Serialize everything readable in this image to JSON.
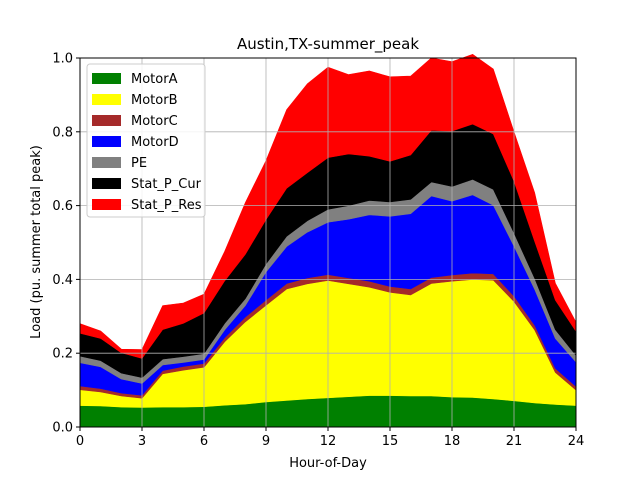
{
  "chart_data": {
    "type": "area",
    "title": "Austin,TX-summer_peak",
    "xlabel": "Hour-of-Day",
    "ylabel": "Load (pu. summer total peak)",
    "xlim": [
      0,
      24
    ],
    "ylim": [
      0,
      1.0
    ],
    "xticks": [
      0,
      3,
      6,
      9,
      12,
      15,
      18,
      21,
      24
    ],
    "xtick_labels": [
      "0",
      "3",
      "6",
      "9",
      "12",
      "15",
      "18",
      "21",
      "24"
    ],
    "yticks": [
      0,
      0.2,
      0.4,
      0.6,
      0.8,
      1.0
    ],
    "ytick_labels": [
      "0.0",
      "0.2",
      "0.4",
      "0.6",
      "0.8",
      "1.0"
    ],
    "grid": true,
    "stacked": true,
    "legend_position": "upper-left",
    "x": [
      0,
      1,
      2,
      3,
      4,
      5,
      6,
      7,
      8,
      9,
      10,
      11,
      12,
      13,
      14,
      15,
      16,
      17,
      18,
      19,
      20,
      21,
      22,
      23,
      24
    ],
    "series": [
      {
        "name": "MotorA",
        "color": "#008000",
        "values": [
          0.058,
          0.057,
          0.054,
          0.053,
          0.054,
          0.054,
          0.055,
          0.059,
          0.062,
          0.068,
          0.072,
          0.076,
          0.079,
          0.082,
          0.085,
          0.085,
          0.084,
          0.084,
          0.081,
          0.08,
          0.076,
          0.071,
          0.065,
          0.061,
          0.058
        ]
      },
      {
        "name": "MotorB",
        "color": "#ffff00",
        "values": [
          0.043,
          0.038,
          0.03,
          0.025,
          0.09,
          0.1,
          0.107,
          0.172,
          0.223,
          0.262,
          0.302,
          0.312,
          0.318,
          0.306,
          0.294,
          0.28,
          0.274,
          0.305,
          0.314,
          0.32,
          0.322,
          0.269,
          0.198,
          0.087,
          0.042
        ]
      },
      {
        "name": "MotorC",
        "color": "#a52a2a",
        "values": [
          0.01,
          0.009,
          0.008,
          0.008,
          0.009,
          0.01,
          0.01,
          0.011,
          0.013,
          0.014,
          0.015,
          0.016,
          0.016,
          0.016,
          0.016,
          0.016,
          0.016,
          0.016,
          0.017,
          0.017,
          0.017,
          0.015,
          0.013,
          0.011,
          0.01
        ]
      },
      {
        "name": "MotorD",
        "color": "#0000ff",
        "values": [
          0.063,
          0.059,
          0.038,
          0.032,
          0.015,
          0.011,
          0.011,
          0.021,
          0.031,
          0.076,
          0.1,
          0.124,
          0.142,
          0.159,
          0.18,
          0.19,
          0.204,
          0.221,
          0.2,
          0.212,
          0.186,
          0.135,
          0.097,
          0.081,
          0.066
        ]
      },
      {
        "name": "PE",
        "color": "#808080",
        "values": [
          0.018,
          0.017,
          0.016,
          0.016,
          0.016,
          0.016,
          0.016,
          0.018,
          0.019,
          0.022,
          0.028,
          0.031,
          0.035,
          0.037,
          0.039,
          0.039,
          0.039,
          0.038,
          0.04,
          0.042,
          0.043,
          0.036,
          0.03,
          0.024,
          0.018
        ]
      },
      {
        "name": "Stat_P_Cur",
        "color": "#000000",
        "values": [
          0.062,
          0.06,
          0.055,
          0.052,
          0.08,
          0.09,
          0.11,
          0.115,
          0.12,
          0.12,
          0.13,
          0.13,
          0.14,
          0.14,
          0.12,
          0.11,
          0.12,
          0.14,
          0.15,
          0.15,
          0.15,
          0.14,
          0.1,
          0.08,
          0.065
        ]
      },
      {
        "name": "Stat_P_Res",
        "color": "#ff0000",
        "values": [
          0.026,
          0.02,
          0.01,
          0.024,
          0.065,
          0.055,
          0.051,
          0.08,
          0.14,
          0.16,
          0.213,
          0.241,
          0.245,
          0.215,
          0.231,
          0.229,
          0.214,
          0.196,
          0.188,
          0.189,
          0.176,
          0.134,
          0.132,
          0.046,
          0.025
        ]
      }
    ]
  }
}
